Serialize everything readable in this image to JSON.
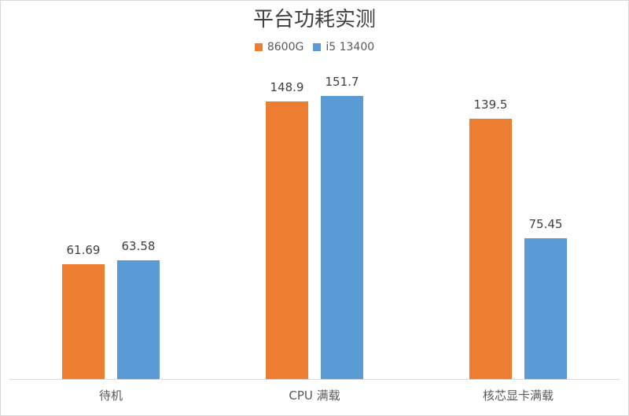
{
  "chart_data": {
    "type": "bar",
    "title": "平台功耗实测",
    "categories": [
      "待机",
      "CPU 满载",
      "核芯显卡满载"
    ],
    "series": [
      {
        "name": "8600G",
        "color": "#ED7D31",
        "values": [
          61.69,
          148.9,
          139.5
        ],
        "labels": [
          "61.69",
          "148.9",
          "139.5"
        ]
      },
      {
        "name": "i5 13400",
        "color": "#5B9BD5",
        "values": [
          63.58,
          151.7,
          75.45
        ],
        "labels": [
          "63.58",
          "151.7",
          "75.45"
        ]
      }
    ],
    "xlabel": "",
    "ylabel": "",
    "ylim": [
      0,
      160
    ],
    "grid": false,
    "legend_position": "top"
  }
}
